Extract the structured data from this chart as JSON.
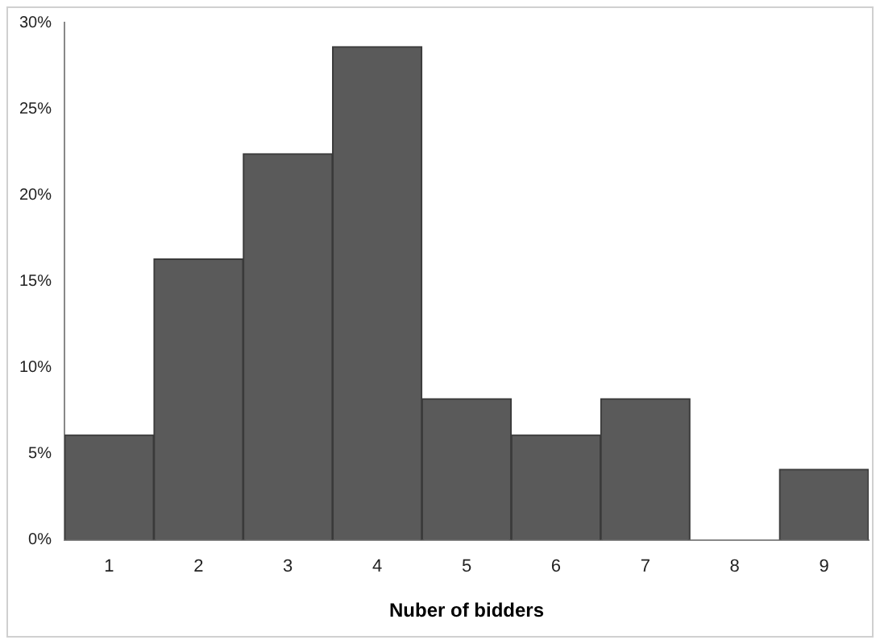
{
  "chart_data": {
    "type": "bar",
    "xlabel": "Nuber of bidders",
    "categories": [
      "1",
      "2",
      "3",
      "4",
      "5",
      "6",
      "7",
      "8",
      "9"
    ],
    "values": [
      6.1,
      16.3,
      22.4,
      28.6,
      8.2,
      6.1,
      8.2,
      0,
      4.1
    ],
    "color": "#5a5a5a",
    "ylim": [
      0,
      30
    ],
    "yticks": [
      {
        "value": 0,
        "label": "0%"
      },
      {
        "value": 5,
        "label": "5%"
      },
      {
        "value": 10,
        "label": "10%"
      },
      {
        "value": 15,
        "label": "15%"
      },
      {
        "value": 20,
        "label": "20%"
      },
      {
        "value": 25,
        "label": "25%"
      },
      {
        "value": 30,
        "label": "30%"
      }
    ],
    "grid": false,
    "legend": false
  }
}
